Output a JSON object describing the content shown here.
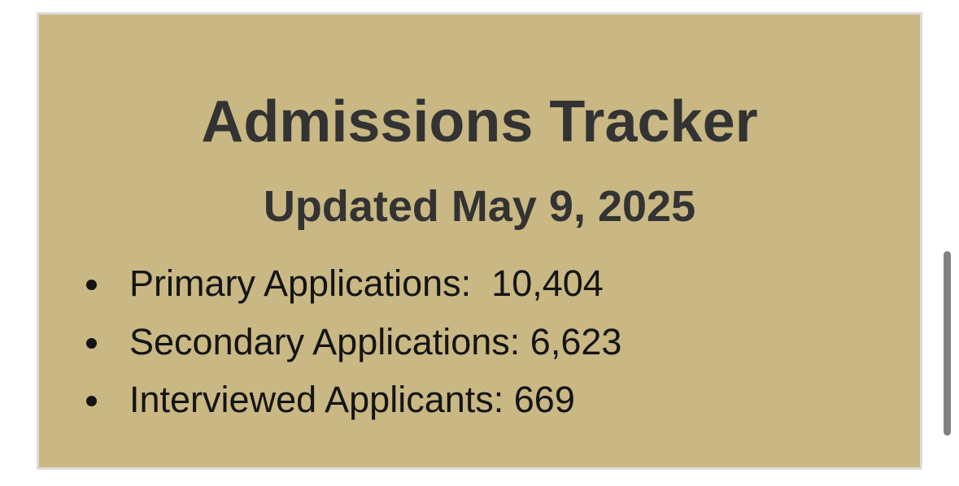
{
  "card": {
    "title": "Admissions Tracker",
    "subtitle": "Updated May 9, 2025",
    "items": [
      {
        "label": "Primary Applications:  10,404"
      },
      {
        "label": "Secondary Applications: 6,623"
      },
      {
        "label": "Interviewed Applicants: 669"
      }
    ],
    "background_color": "#c9b883",
    "text_color": "#333333"
  }
}
